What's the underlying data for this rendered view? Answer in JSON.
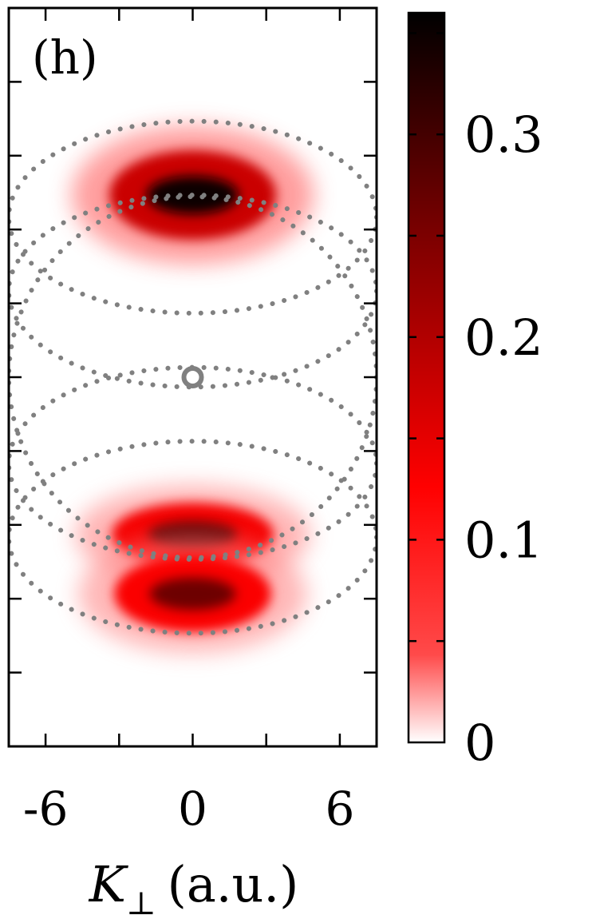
{
  "chart_data": {
    "type": "heatmap",
    "panel_label": "(h)",
    "xlabel_symbol": "K",
    "xlabel_subscript": "⊥",
    "xlabel_units": "(a.u.)",
    "xlim": [
      -7.5,
      7.5
    ],
    "ylim": [
      -15,
      15
    ],
    "x_ticks": [
      -6,
      0,
      6
    ],
    "x_tick_labels": [
      "-6",
      "0",
      "6"
    ],
    "colorbar": {
      "range": [
        0,
        0.36
      ],
      "ticks": [
        0,
        0.1,
        0.2,
        0.3
      ],
      "tick_labels": [
        "0",
        "0.1",
        "0.2",
        "0.3"
      ],
      "colors": [
        "#ffffff",
        "#ff0000",
        "#000000"
      ]
    },
    "lobes": [
      {
        "name": "upper",
        "cx": 0,
        "cy": 7.4,
        "rx": 3.4,
        "ry": 1.4,
        "peak": 0.35
      },
      {
        "name": "lower-inner",
        "cx": 0,
        "cy": -6.4,
        "rx": 3.3,
        "ry": 1.0,
        "peak": 0.27
      },
      {
        "name": "lower-outer",
        "cx": 0,
        "cy": -8.8,
        "rx": 3.2,
        "ry": 1.2,
        "peak": 0.26
      }
    ],
    "dotted_circles": [
      {
        "cx": 0,
        "cy": 0,
        "r": 7.5
      },
      {
        "cx": 0,
        "cy": 3.5,
        "r": 7.5
      },
      {
        "cx": 0,
        "cy": -3.5,
        "r": 7.5
      },
      {
        "cx": 0,
        "cy": 6.5,
        "r": 7.5
      },
      {
        "cx": 0,
        "cy": -6.5,
        "r": 7.5
      }
    ],
    "center_marker": {
      "x": 0,
      "y": 0
    },
    "circle_color": "#808080"
  }
}
